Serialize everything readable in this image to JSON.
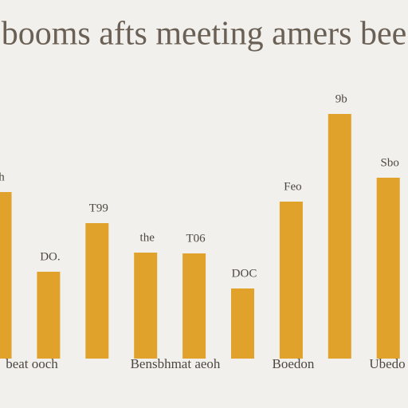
{
  "chart_data": {
    "type": "bar",
    "title": "booms afts meeting amers bee",
    "categories": [
      null,
      null,
      null,
      null,
      null,
      null,
      null,
      null,
      null
    ],
    "values": [
      209,
      109,
      170,
      133,
      132,
      88,
      197,
      307,
      227
    ],
    "bar_labels": [
      "h",
      "DO.",
      "T99",
      "the",
      "T06",
      "DOC",
      "Feo",
      "9b",
      "Sbo"
    ],
    "x_labels": [
      "beat ooch",
      "Bensbhmat aeoh",
      "Boedon",
      "Ubedo"
    ],
    "color": "#e0a22a",
    "ylim": [
      0,
      330
    ]
  }
}
